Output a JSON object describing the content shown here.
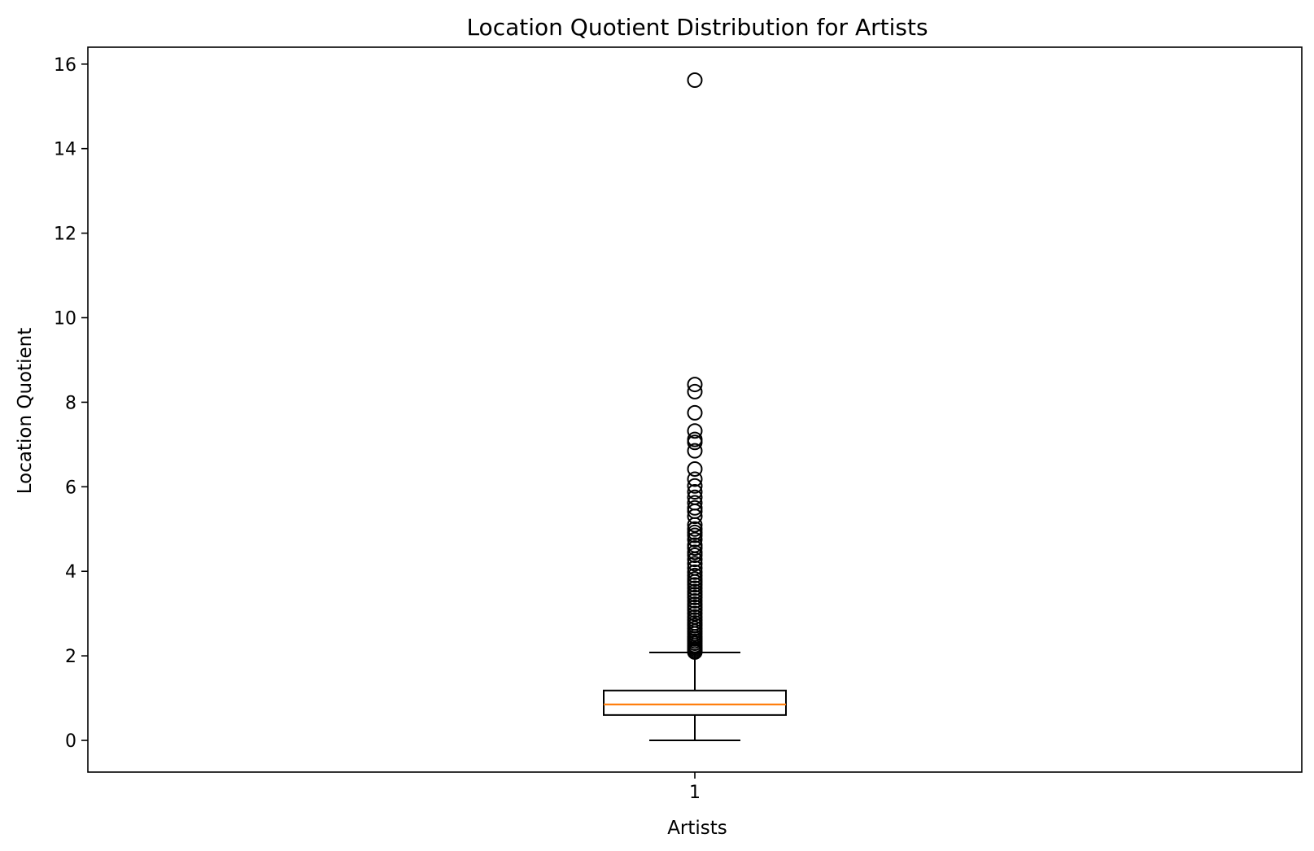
{
  "chart_data": {
    "type": "boxplot",
    "title": "Location Quotient Distribution for Artists",
    "xlabel": "Artists",
    "ylabel": "Location Quotient",
    "categories": [
      "1"
    ],
    "ylim": [
      -0.75,
      16.4
    ],
    "y_ticks": [
      0,
      2,
      4,
      6,
      8,
      10,
      12,
      14,
      16
    ],
    "grid": false,
    "colors": {
      "box": "#000000",
      "median": "#ff7f0e",
      "whisker": "#000000",
      "flier": "#000000"
    },
    "box": {
      "label": "1",
      "whisker_low": 0.0,
      "q1": 0.6,
      "median": 0.85,
      "q3": 1.18,
      "whisker_high": 2.08
    },
    "outliers": [
      15.62,
      8.42,
      8.25,
      7.75,
      7.32,
      7.12,
      7.05,
      6.85,
      6.42,
      6.18,
      6.02,
      5.88,
      5.75,
      5.62,
      5.5,
      5.42,
      5.3,
      5.1,
      5.0,
      4.92,
      4.85,
      4.75,
      4.62,
      4.55,
      4.45,
      4.38,
      4.28,
      4.18,
      4.08,
      3.98,
      3.9,
      3.82,
      3.75,
      3.68,
      3.6,
      3.52,
      3.45,
      3.38,
      3.3,
      3.22,
      3.15,
      3.08,
      3.0,
      2.92,
      2.85,
      2.78,
      2.72,
      2.65,
      2.58,
      2.52,
      2.45,
      2.4,
      2.35,
      2.3,
      2.25,
      2.2,
      2.16,
      2.12,
      2.09
    ]
  }
}
